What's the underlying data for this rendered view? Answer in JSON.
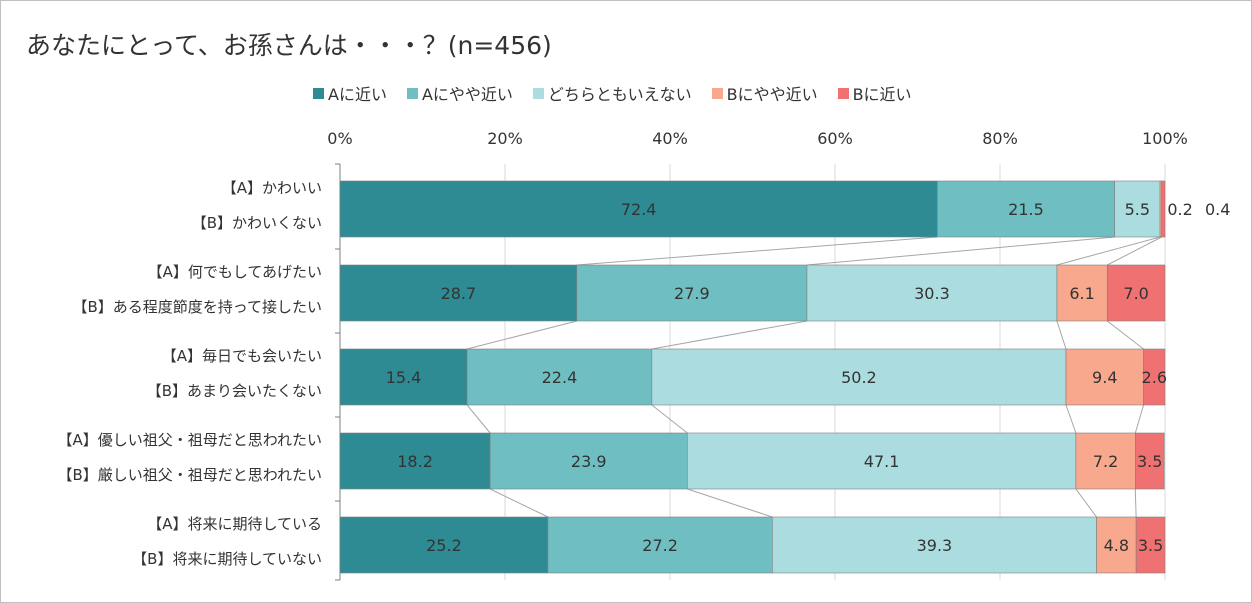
{
  "chart_data": {
    "type": "bar",
    "orientation": "horizontal",
    "stacked": true,
    "title": "あなたにとって、お孫さんは・・・？(n=456)",
    "xlim": [
      0,
      100
    ],
    "x_ticks": [
      "0%",
      "20%",
      "40%",
      "60%",
      "80%",
      "100%"
    ],
    "grid": true,
    "legend_position": "top",
    "categories": [
      [
        "【A】かわいい",
        "【B】かわいくない"
      ],
      [
        "【A】何でもしてあげたい",
        "【B】ある程度節度を持って接したい"
      ],
      [
        "【A】毎日でも会いたい",
        "【B】あまり会いたくない"
      ],
      [
        "【A】優しい祖父・祖母だと思われたい",
        "【B】厳しい祖父・祖母だと思われたい"
      ],
      [
        "【A】将来に期待している",
        "【B】将来に期待していない"
      ]
    ],
    "series": [
      {
        "name": "Aに近い",
        "color": "#2e8b94",
        "values": [
          72.4,
          28.7,
          15.4,
          18.2,
          25.2
        ],
        "labels": [
          "72.4",
          "28.7",
          "15.4",
          "18.2",
          "25.2"
        ]
      },
      {
        "name": "Aにやや近い",
        "color": "#6fbfc2",
        "values": [
          21.5,
          27.9,
          22.4,
          23.9,
          27.2
        ],
        "labels": [
          "21.5",
          "27.9",
          "22.4",
          "23.9",
          "27.2"
        ]
      },
      {
        "name": "どちらともいえない",
        "color": "#abdde0",
        "values": [
          5.5,
          30.3,
          50.2,
          47.1,
          39.3
        ],
        "labels": [
          "5.5",
          "30.3",
          "50.2",
          "47.1",
          "39.3"
        ]
      },
      {
        "name": "Bにやや近い",
        "color": "#f8a88c",
        "values": [
          0.2,
          6.1,
          9.4,
          7.2,
          4.8
        ],
        "labels": [
          "0.2",
          "6.1",
          "9.4",
          "7.2",
          "4.8"
        ]
      },
      {
        "name": "Bに近い",
        "color": "#f07171",
        "values": [
          0.4,
          7.0,
          2.6,
          3.5,
          3.5
        ],
        "labels": [
          "0.4",
          "7.0",
          "2.6",
          "3.5",
          "3.5"
        ]
      }
    ]
  }
}
